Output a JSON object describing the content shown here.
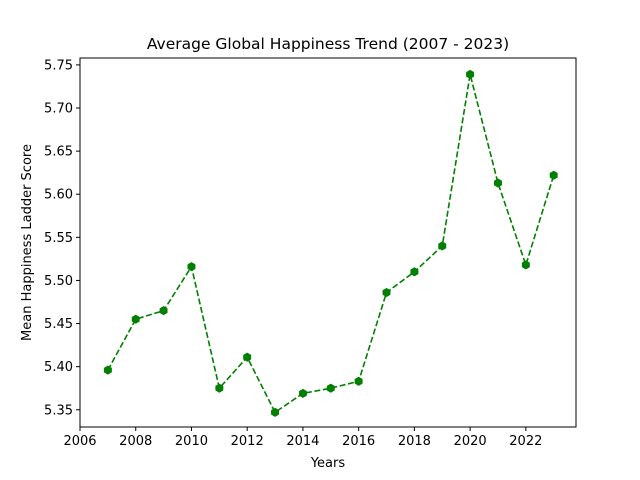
{
  "chart_data": {
    "type": "line",
    "title": "Average Global Happiness Trend (2007 - 2023)",
    "xlabel": "Years",
    "ylabel": "Mean Happiness Ladder Score",
    "x": [
      2007,
      2008,
      2009,
      2010,
      2011,
      2012,
      2013,
      2014,
      2015,
      2016,
      2017,
      2018,
      2019,
      2020,
      2021,
      2022,
      2023
    ],
    "series": [
      {
        "values": [
          5.396,
          5.455,
          5.465,
          5.516,
          5.375,
          5.411,
          5.347,
          5.369,
          5.375,
          5.383,
          5.486,
          5.51,
          5.54,
          5.739,
          5.613,
          5.518,
          5.622
        ],
        "color": "#008000",
        "line_style": "dashed",
        "marker": "hexagon"
      }
    ],
    "xlim": [
      2006,
      2023.8
    ],
    "ylim": [
      5.33,
      5.758
    ],
    "x_ticks": [
      "2006",
      "2008",
      "2010",
      "2012",
      "2014",
      "2016",
      "2018",
      "2020",
      "2022"
    ],
    "y_ticks": [
      "5.35",
      "5.40",
      "5.45",
      "5.50",
      "5.55",
      "5.60",
      "5.65",
      "5.70",
      "5.75"
    ],
    "grid": false,
    "legend": "none"
  }
}
